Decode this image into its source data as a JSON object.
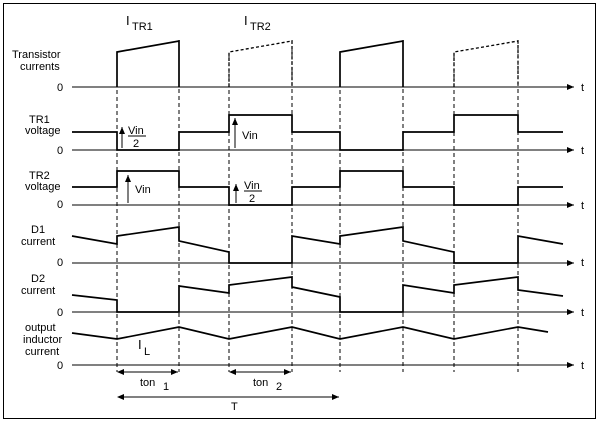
{
  "labels": {
    "transistor_currents_1": "Transistor",
    "transistor_currents_2": "currents",
    "tr1_voltage_1": "TR1",
    "tr1_voltage_2": "voltage",
    "tr2_voltage_1": "TR2",
    "tr2_voltage_2": "voltage",
    "d1_current_1": "D1",
    "d1_current_2": "current",
    "d2_current_1": "D2",
    "d2_current_2": "current",
    "inductor_1": "output",
    "inductor_2": "inductor",
    "inductor_3": "current",
    "zero": "0",
    "t": "t"
  },
  "annotations": {
    "itr1_main": "I",
    "itr1_sub": "TR1",
    "itr2_main": "I",
    "itr2_sub": "TR2",
    "tr1_vin_half_num": "Vin",
    "tr1_vin_half_den": "2",
    "tr1_vin": "Vin",
    "tr2_vin": "Vin",
    "tr2_vin_half_num": "Vin",
    "tr2_vin_half_den": "2",
    "il_main": "I",
    "il_sub": "L",
    "ton1_main": "ton",
    "ton1_sub": "1",
    "ton2_main": "ton",
    "ton2_sub": "2",
    "period": "T"
  }
}
